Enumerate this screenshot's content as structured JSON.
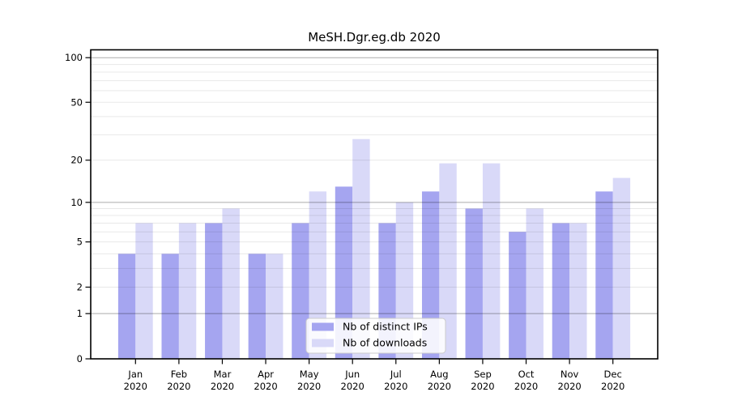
{
  "figure": {
    "title": "MeSH.Dgr.eg.db 2020"
  },
  "chart_data": {
    "type": "bar",
    "title": "MeSH.Dgr.eg.db 2020",
    "x_categories": [
      "Jan",
      "Feb",
      "Mar",
      "Apr",
      "May",
      "Jun",
      "Jul",
      "Aug",
      "Sep",
      "Oct",
      "Nov",
      "Dec"
    ],
    "x_year_label": "2020",
    "series": [
      {
        "name": "Nb of distinct IPs",
        "color": "#a5a5f0",
        "values": [
          4,
          4,
          7,
          4,
          7,
          13,
          7,
          12,
          9,
          6,
          7,
          12
        ]
      },
      {
        "name": "Nb of downloads",
        "color": "#d9d9f8",
        "values": [
          7,
          7,
          9,
          4,
          12,
          28,
          10,
          19,
          19,
          9,
          7,
          15
        ]
      }
    ],
    "y_ticks": [
      0,
      1,
      2,
      5,
      10,
      20,
      50,
      100
    ],
    "y_minor_gridlines": [
      2,
      3,
      4,
      5,
      6,
      7,
      8,
      9,
      20,
      30,
      40,
      50,
      60,
      70,
      80,
      90
    ],
    "y_major_gridlines": [
      1,
      10,
      100
    ],
    "y_scale": "log10(1+v)",
    "ylim": [
      0,
      113
    ],
    "grid": true,
    "legend_position": "lower center"
  }
}
